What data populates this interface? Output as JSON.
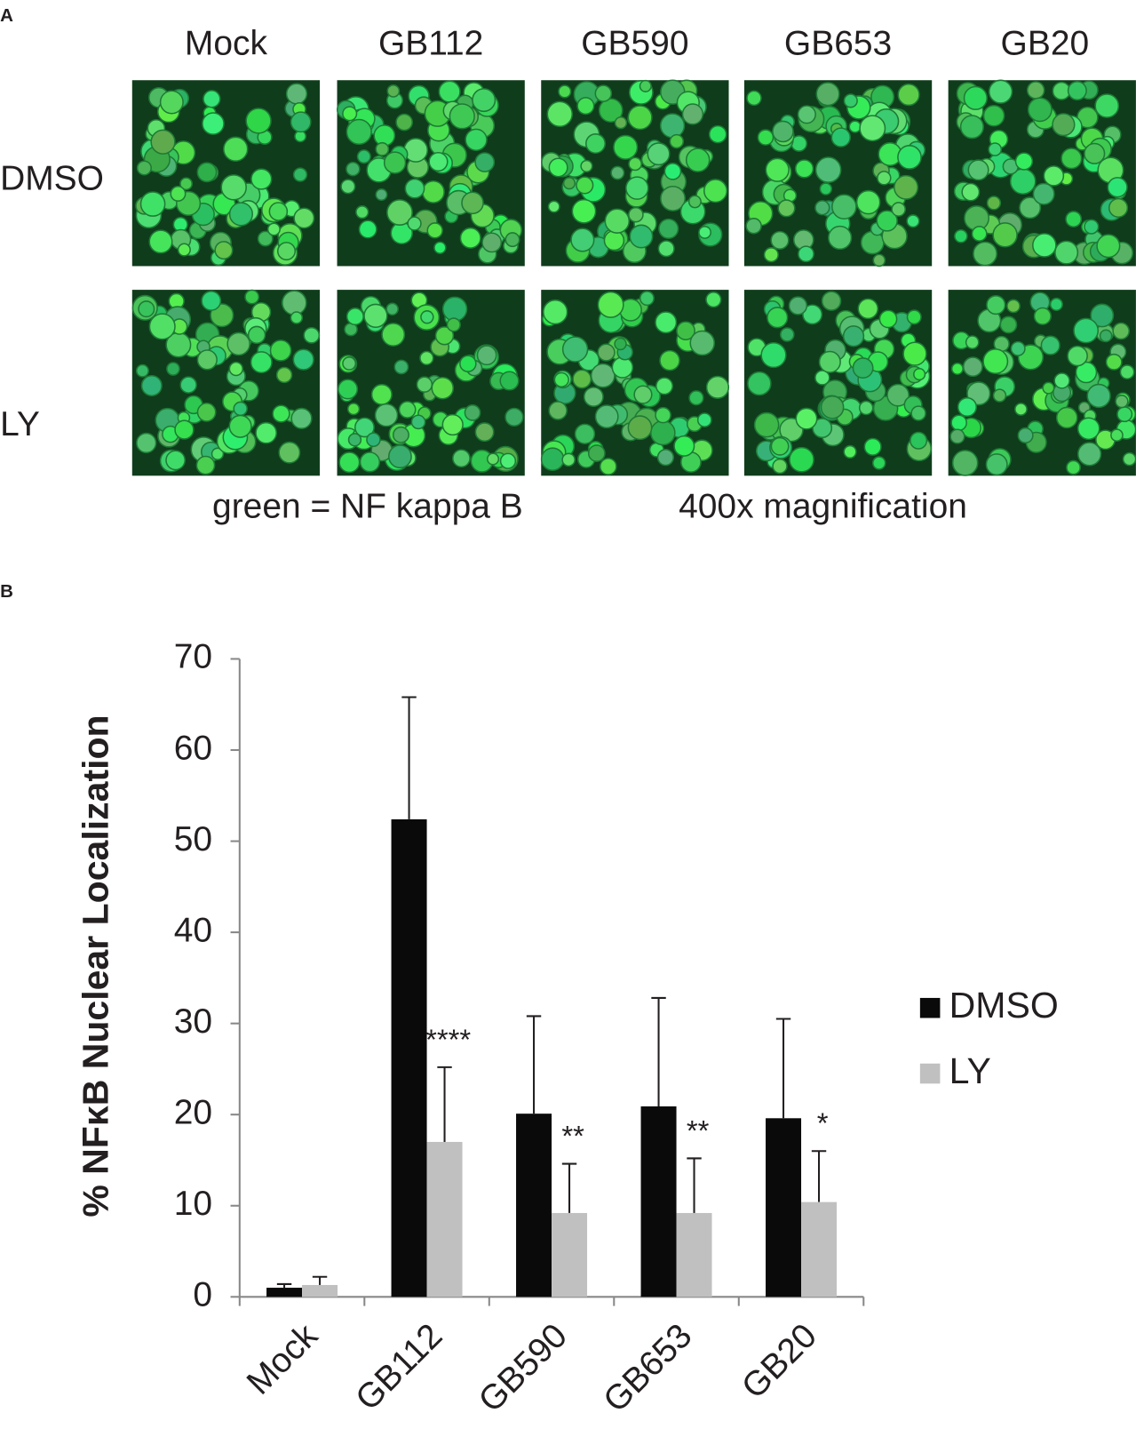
{
  "panel_a": {
    "label": "A",
    "columns": [
      "Mock",
      "GB112",
      "GB590",
      "GB653",
      "GB20"
    ],
    "rows": [
      "DMSO",
      "LY"
    ],
    "captions": [
      "green = NF kappa B",
      "400x magnification"
    ]
  },
  "panel_b": {
    "label": "B"
  },
  "chart_data": {
    "type": "bar",
    "y_label": "% NFκB Nuclear Localization",
    "categories": [
      "Mock",
      "GB112",
      "GB590",
      "GB653",
      "GB20"
    ],
    "series": [
      {
        "name": "DMSO",
        "color": "#0a0a0a",
        "values": [
          1.0,
          52.4,
          20.1,
          20.9,
          19.6
        ],
        "errors": [
          0.4,
          13.4,
          10.7,
          11.9,
          10.9
        ]
      },
      {
        "name": "LY",
        "color": "#c0c0c0",
        "values": [
          1.3,
          17.0,
          9.2,
          9.2,
          10.4
        ],
        "errors": [
          0.9,
          8.2,
          5.4,
          6.0,
          5.6
        ]
      }
    ],
    "significance": [
      null,
      "****",
      "**",
      "**",
      "*"
    ],
    "ylim": [
      0,
      70
    ],
    "yticks": [
      0,
      10,
      20,
      30,
      40,
      50,
      60,
      70
    ],
    "grid": false,
    "legend": "right"
  }
}
